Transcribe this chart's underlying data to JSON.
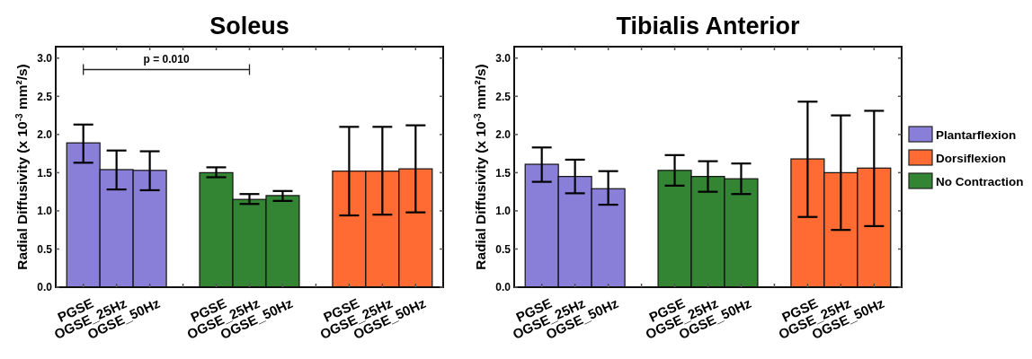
{
  "chart_data": [
    {
      "type": "bar",
      "title": "Soleus",
      "ylabel": "Radial Diffusivity (x 10$^{-3}$ mm²/s)",
      "categories": [
        "PGSE",
        "OGSE_25Hz",
        "OGSE_50Hz",
        null,
        "PGSE",
        "OGSE_25Hz",
        "OGSE_50Hz",
        null,
        "PGSE",
        "OGSE_25Hz",
        "OGSE_50Hz"
      ],
      "series": [
        {
          "color": "#8a7fd8",
          "values": [
            1.89,
            1.54,
            1.53,
            null,
            null,
            null,
            null,
            null,
            null,
            null,
            null
          ],
          "errors": [
            [
              1.63,
              2.13
            ],
            [
              1.28,
              1.79
            ],
            [
              1.27,
              1.78
            ],
            null,
            null,
            null,
            null,
            null,
            null,
            null,
            null
          ]
        },
        {
          "color": "#338433",
          "values": [
            null,
            null,
            null,
            null,
            1.5,
            1.15,
            1.2,
            null,
            null,
            null,
            null
          ],
          "errors": [
            null,
            null,
            null,
            null,
            [
              1.44,
              1.57
            ],
            [
              1.09,
              1.22
            ],
            [
              1.13,
              1.26
            ],
            null,
            null,
            null,
            null
          ]
        },
        {
          "color": "#ff6b33",
          "values": [
            null,
            null,
            null,
            null,
            null,
            null,
            null,
            null,
            1.52,
            1.52,
            1.55
          ],
          "errors": [
            null,
            null,
            null,
            null,
            null,
            null,
            null,
            null,
            [
              0.94,
              2.1
            ],
            [
              0.95,
              2.1
            ],
            [
              0.98,
              2.12
            ]
          ]
        }
      ],
      "ylim": [
        0,
        3.15
      ],
      "yticks": [
        {
          "value": 0,
          "label": "0.0"
        },
        {
          "value": 0.5,
          "label": "0.5"
        },
        {
          "value": 1,
          "label": "1.0"
        },
        {
          "value": 1.5,
          "label": "1.5"
        },
        {
          "value": 2,
          "label": "2.0"
        },
        {
          "value": 2.5,
          "label": "2.5"
        },
        {
          "value": 3,
          "label": "3.0"
        }
      ],
      "grid": false,
      "legend": false,
      "annotations": [
        "p = 0.010"
      ]
    },
    {
      "type": "bar",
      "title": "Tibialis Anterior",
      "ylabel": "Radial Diffusivity (x 10$^{-3}$ mm²/s)",
      "categories": [
        "PGSE",
        "OGSE_25Hz",
        "OGSE_50Hz",
        null,
        "PGSE",
        "OGSE_25Hz",
        "OGSE_50Hz",
        null,
        "PGSE",
        "OGSE_25Hz",
        "OGSE_50Hz"
      ],
      "series": [
        {
          "name": "Plantarflexion",
          "color": "#8a7fd8",
          "values": [
            1.61,
            1.45,
            1.29,
            null,
            null,
            null,
            null,
            null,
            null,
            null,
            null
          ],
          "errors": [
            [
              1.38,
              1.83
            ],
            [
              1.23,
              1.67
            ],
            [
              1.08,
              1.52
            ],
            null,
            null,
            null,
            null,
            null,
            null,
            null,
            null
          ]
        },
        {
          "name": "Dorsiflexion",
          "color": "#ff6b33",
          "values": [
            null,
            null,
            null,
            null,
            null,
            null,
            null,
            null,
            1.68,
            1.5,
            1.56
          ],
          "errors": [
            null,
            null,
            null,
            null,
            null,
            null,
            null,
            null,
            [
              0.92,
              2.43
            ],
            [
              0.75,
              2.25
            ],
            [
              0.8,
              2.31
            ]
          ]
        },
        {
          "name": "No Contraction",
          "color": "#338433",
          "values": [
            null,
            null,
            null,
            null,
            1.53,
            1.45,
            1.42,
            null,
            null,
            null,
            null
          ],
          "errors": [
            null,
            null,
            null,
            null,
            [
              1.33,
              1.73
            ],
            [
              1.25,
              1.65
            ],
            [
              1.22,
              1.62
            ],
            null,
            null,
            null,
            null
          ]
        }
      ],
      "ylim": [
        0,
        3.15
      ],
      "yticks": [
        {
          "value": 0,
          "label": "0.0"
        },
        {
          "value": 0.5,
          "label": "0.5"
        },
        {
          "value": 1,
          "label": "1.0"
        },
        {
          "value": 1.5,
          "label": "1.5"
        },
        {
          "value": 2,
          "label": "2.0"
        },
        {
          "value": 2.5,
          "label": "2.5"
        },
        {
          "value": 3,
          "label": "3.0"
        }
      ],
      "grid": false,
      "legend": "right"
    }
  ]
}
